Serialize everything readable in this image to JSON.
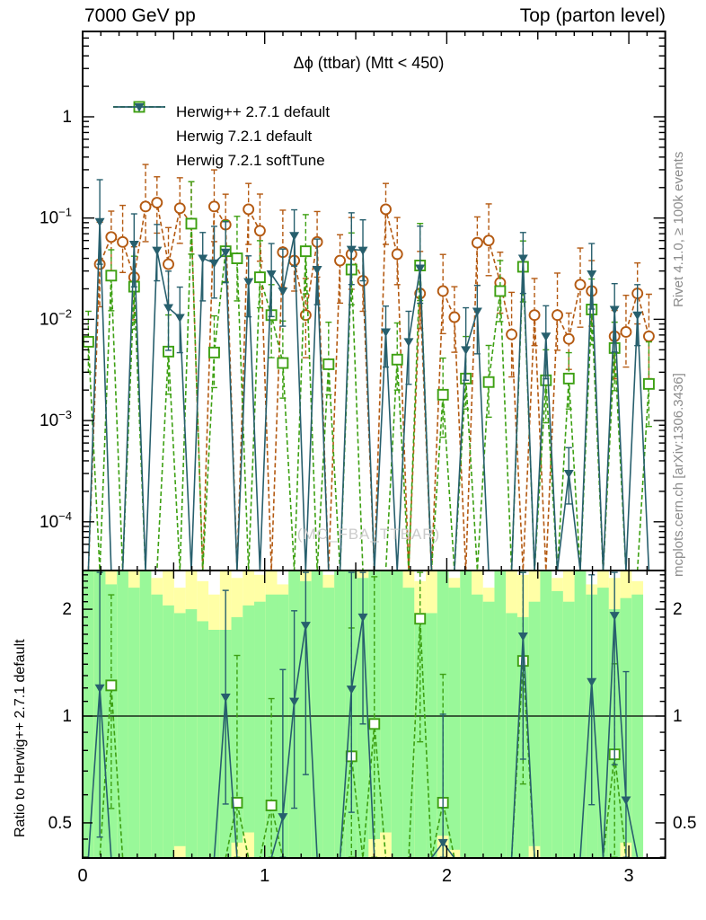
{
  "header": {
    "left": "7000 GeV pp",
    "right": "Top (parton level)"
  },
  "title": "Δϕ (ttbar) (Mtt < 450)",
  "watermark": "(MC_FBA_TTBAR)",
  "side_notes": {
    "top": "Rivet 4.1.0, ≥ 100k events",
    "bottom": "mcplots.cern.ch [arXiv:1306.3436]"
  },
  "ratio_axis_title": "Ratio to Herwig++ 2.7.1 default",
  "legend": [
    {
      "label": "Herwig++ 2.7.1 default",
      "marker": "open-circle",
      "line": "dashed",
      "color": "#b45a12"
    },
    {
      "label": "Herwig 7.2.1 default",
      "marker": "open-square",
      "line": "dashed",
      "color": "#3da012"
    },
    {
      "label": "Herwig 7.2.1 softTune",
      "marker": "filled-triangle-down",
      "line": "solid",
      "color": "#275f6d"
    }
  ],
  "colors": {
    "herwigpp_271": "#b45a12",
    "herwig_721": "#3da012",
    "herwig_721_softtune": "#275f6d",
    "band_green": "#99f899",
    "band_yellow": "#ffffa6",
    "frame": "#000000",
    "watermark": "#cbcbcb",
    "side_note": "#8c8c8c"
  },
  "chart_data": {
    "type": "scatter",
    "title": "Δϕ (ttbar) (Mtt < 450)",
    "xlabel": "",
    "ylabel": "",
    "ratio_ylabel": "Ratio to Herwig++ 2.7.1 default",
    "x_range": [
      0,
      3.2
    ],
    "x_data_max": 3.1416,
    "bins": 50,
    "bin_width": 0.06283,
    "main_y_log_range": [
      3.3e-05,
      7.0
    ],
    "ratio_y_log_range": [
      0.39,
      2.57
    ],
    "grid": false,
    "legend_position": "top-left",
    "x_ticks": [
      {
        "v": 0,
        "t": "0"
      },
      {
        "v": 1,
        "t": "1"
      },
      {
        "v": 2,
        "t": "2"
      },
      {
        "v": 3,
        "t": "3"
      }
    ],
    "main_y_ticks": [
      {
        "v": 1,
        "base": "1",
        "exp": ""
      },
      {
        "v": 0.1,
        "base": "10",
        "exp": "−1"
      },
      {
        "v": 0.01,
        "base": "10",
        "exp": "−2"
      },
      {
        "v": 0.001,
        "base": "10",
        "exp": "−3"
      },
      {
        "v": 0.0001,
        "base": "10",
        "exp": "−4"
      }
    ],
    "ratio_y_ticks": [
      {
        "v": 2,
        "t": "2"
      },
      {
        "v": 1,
        "t": "1"
      },
      {
        "v": 0.5,
        "t": "0.5"
      }
    ],
    "ratio_baseline": 1.0,
    "series": [
      {
        "name": "Herwig++ 2.7.1 default",
        "color": "#b45a12",
        "marker": "open-circle",
        "line": "dashed",
        "values": [
          0,
          0.035,
          0.065,
          0.058,
          0.026,
          0.13,
          0.142,
          0.035,
          0.125,
          0.088,
          0,
          0.13,
          0.086,
          0,
          0.122,
          0.075,
          0,
          0.046,
          0.038,
          0.011,
          0.058,
          0,
          0.038,
          0.044,
          0.024,
          0,
          0.122,
          0.044,
          0,
          0.018,
          0,
          0.019,
          0.0105,
          0,
          0.057,
          0.06,
          0.023,
          0.0071,
          0,
          0.011,
          0,
          0.011,
          0.0064,
          0.022,
          0.019,
          0,
          0.0068,
          0.0075,
          0.018,
          0.0068
        ]
      },
      {
        "name": "Herwig 7.2.1 default",
        "color": "#3da012",
        "marker": "open-square",
        "line": "dashed",
        "values": [
          0.006,
          0,
          0.027,
          0,
          0.021,
          0,
          0,
          0.0048,
          0,
          0.088,
          0,
          0.0047,
          0.047,
          0.04,
          0,
          0.026,
          0.011,
          0.0037,
          0,
          0.047,
          0,
          0.0036,
          0,
          0.031,
          0,
          0,
          0,
          0.004,
          0,
          0.034,
          0,
          0.0018,
          0,
          0.0026,
          0,
          0.0024,
          0.019,
          0,
          0.033,
          0,
          0.0025,
          0,
          0.0026,
          0,
          0.0125,
          0,
          0.0052,
          0,
          0,
          0.0023
        ]
      },
      {
        "name": "Herwig 7.2.1 softTune",
        "color": "#275f6d",
        "marker": "filled-triangle-down",
        "line": "solid",
        "values": [
          0,
          0.092,
          0,
          0,
          0.055,
          0,
          0.048,
          0.013,
          0.0104,
          0,
          0.04,
          0.036,
          0.046,
          0,
          0.0235,
          0,
          0.028,
          0.019,
          0.067,
          0,
          0.031,
          0,
          0,
          0.049,
          0.048,
          0,
          0.0075,
          0,
          0.006,
          0.032,
          0,
          0,
          0,
          0.005,
          0.012,
          0,
          0,
          0,
          0.04,
          0,
          0.0068,
          0,
          0.0003,
          0,
          0.028,
          0,
          0.0125,
          0,
          0.011,
          0
        ]
      }
    ],
    "ratio_series": [
      {
        "name": "Herwig 7.2.1 default",
        "color": "#3da012",
        "marker": "open-square",
        "line": "dashed",
        "values": [
          0,
          0,
          1.22,
          0,
          0,
          0,
          0,
          0,
          0,
          0,
          0,
          0,
          0,
          0.57,
          0,
          0,
          0.56,
          0,
          0,
          0,
          0,
          0,
          0,
          0.77,
          0,
          0.95,
          0,
          0,
          0,
          1.88,
          0,
          0.57,
          0,
          0,
          0,
          0,
          0,
          0,
          1.43,
          0,
          0,
          0,
          0,
          0,
          0,
          0,
          0.78,
          0,
          0,
          0
        ]
      },
      {
        "name": "Herwig 7.2.1 softTune",
        "color": "#275f6d",
        "marker": "filled-triangle-down",
        "line": "solid",
        "values": [
          0,
          1.2,
          0,
          0,
          0,
          0,
          0,
          0,
          0,
          0,
          0,
          0,
          1.13,
          0,
          0,
          0,
          0,
          0.52,
          1.1,
          1.8,
          0,
          0,
          0,
          1.19,
          1.9,
          0,
          0,
          0,
          0,
          0,
          0,
          0.44,
          0,
          0,
          0,
          0,
          0,
          0,
          1.68,
          0,
          0,
          0,
          0,
          0,
          1.25,
          0,
          1.92,
          0.58,
          0,
          0
        ]
      }
    ],
    "ratio_band": {
      "yellow_hi": [
        2.6,
        2.6,
        2.6,
        2.6,
        2.6,
        2.6,
        2.45,
        2.6,
        2.3,
        2.6,
        2.4,
        2.2,
        2.6,
        2.45,
        2.6,
        2.5,
        2.6,
        2.35,
        2.6,
        2.6,
        2.6,
        2.5,
        2.6,
        2.6,
        2.6,
        2.6,
        2.6,
        2.6,
        2.6,
        2.4,
        2.6,
        2.6,
        2.45,
        2.6,
        2.6,
        2.3,
        2.6,
        2.6,
        2.5,
        2.6,
        2.6,
        2.45,
        2.6,
        2.6,
        2.35,
        2.6,
        2.45,
        2.6,
        2.4,
        null
      ],
      "green_hi": [
        2.6,
        2.6,
        2.35,
        2.6,
        2.3,
        2.6,
        2.2,
        2.05,
        1.95,
        2.0,
        1.85,
        1.75,
        1.75,
        1.9,
        2.05,
        2.1,
        2.2,
        2.2,
        2.6,
        2.4,
        2.6,
        2.3,
        2.6,
        2.6,
        2.45,
        2.6,
        2.6,
        2.6,
        2.3,
        1.85,
        1.95,
        2.6,
        2.3,
        2.6,
        2.2,
        2.1,
        2.6,
        1.95,
        1.9,
        2.1,
        2.6,
        2.25,
        2.1,
        2.6,
        2.2,
        2.3,
        2.0,
        2.15,
        2.2,
        null
      ],
      "green_lo": [
        0.39,
        0.39,
        0.39,
        0.39,
        0.39,
        0.39,
        0.39,
        0.39,
        0.43,
        0.39,
        0.39,
        0.39,
        0.39,
        0.44,
        0.47,
        0.39,
        0.39,
        0.39,
        0.39,
        0.39,
        0.39,
        0.39,
        0.39,
        0.39,
        0.39,
        0.45,
        0.47,
        0.39,
        0.39,
        0.39,
        0.39,
        0.46,
        0.42,
        0.39,
        0.39,
        0.39,
        0.39,
        0.39,
        0.39,
        0.43,
        0.39,
        0.39,
        0.39,
        0.39,
        0.39,
        0.39,
        0.39,
        0.44,
        0.39,
        null
      ],
      "yellow_lo": 0.39
    }
  }
}
